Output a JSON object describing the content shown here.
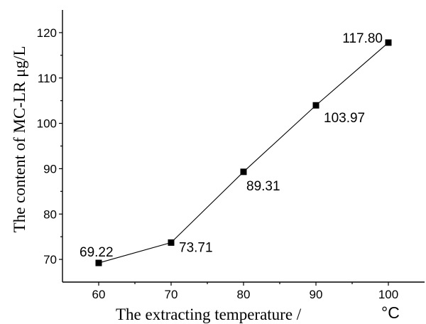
{
  "chart_data": {
    "type": "line",
    "xlabel": "The extracting temperature /",
    "xunit": "°C",
    "ylabel": "The content of MC-LR  μg/L",
    "xlim": [
      55,
      105
    ],
    "ylim": [
      65,
      125
    ],
    "xticks": [
      60,
      70,
      80,
      90,
      100
    ],
    "yticks": [
      70,
      80,
      90,
      100,
      110,
      120
    ],
    "grid": false,
    "legend": "none",
    "marker": "square",
    "series": [
      {
        "x": [
          60,
          70,
          80,
          90,
          100
        ],
        "values": [
          69.22,
          73.71,
          89.31,
          103.97,
          117.8
        ],
        "labels": [
          "69.22",
          "73.71",
          "89.31",
          "103.97",
          "117.80"
        ]
      }
    ]
  }
}
